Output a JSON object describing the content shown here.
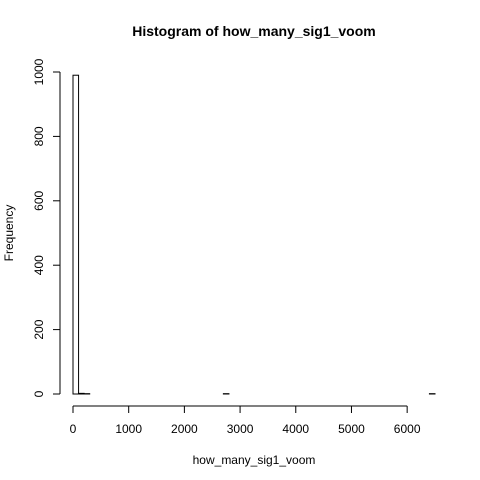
{
  "chart_data": {
    "type": "bar",
    "title": "Histogram of how_many_sig1_voom",
    "xlabel": "how_many_sig1_voom",
    "ylabel": "Frequency",
    "xlim": [
      0,
      6500
    ],
    "ylim": [
      0,
      1000
    ],
    "xticks": [
      0,
      1000,
      2000,
      3000,
      4000,
      5000,
      6000
    ],
    "yticks": [
      0,
      200,
      400,
      600,
      800,
      1000
    ],
    "bin_width": 100,
    "bins": [
      {
        "x0": 0,
        "x1": 100,
        "count": 990
      },
      {
        "x0": 100,
        "x1": 200,
        "count": 2
      },
      {
        "x0": 200,
        "x1": 300,
        "count": 1
      },
      {
        "x0": 2700,
        "x1": 2800,
        "count": 1
      },
      {
        "x0": 6400,
        "x1": 6500,
        "count": 1
      }
    ]
  }
}
